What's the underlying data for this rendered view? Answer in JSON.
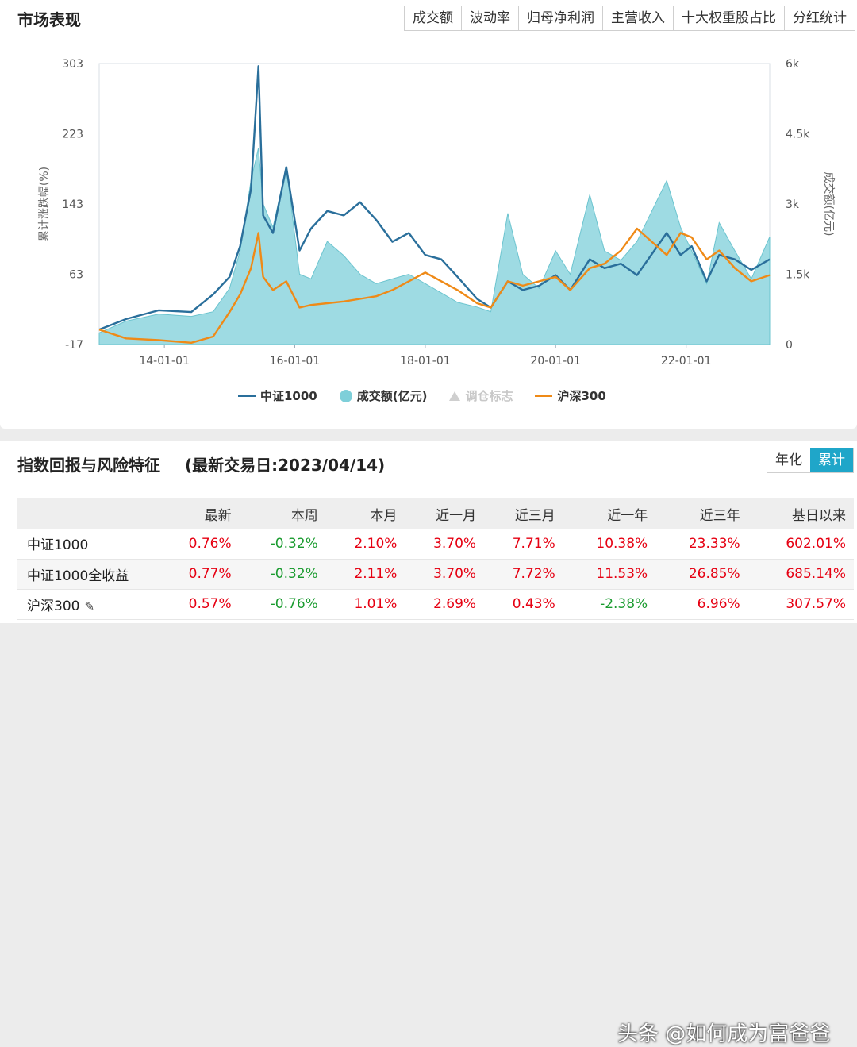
{
  "market": {
    "title": "市场表现",
    "tabs": [
      "成交额",
      "波动率",
      "归母净利润",
      "主营收入",
      "十大权重股占比",
      "分红统计"
    ],
    "active_tab": 0,
    "legend": {
      "series_a": "中证1000",
      "volume": "成交额(亿元)",
      "marker": "调仓标志",
      "series_b": "沪深300"
    }
  },
  "chart_data": {
    "type": "line",
    "ylabel": "累计涨跌幅(%)",
    "ylabel_right": "成交额(亿元)",
    "y_ticks": [
      "303",
      "223",
      "143",
      "63",
      "-17"
    ],
    "y_right_ticks": [
      "6k",
      "4.5k",
      "3k",
      "1.5k",
      "0"
    ],
    "x_ticks": [
      "14-01-01",
      "16-01-01",
      "18-01-01",
      "20-01-01",
      "22-01-01"
    ],
    "ylim": [
      -17,
      303
    ],
    "ylim_right": [
      0,
      6000
    ],
    "x_range": [
      "2013-01-01",
      "2023-04-14"
    ],
    "series": [
      {
        "name": "中证1000",
        "color": "#2a6f9b",
        "x": [
          "2013-01-01",
          "2013-06-01",
          "2013-12-01",
          "2014-06-01",
          "2014-10-01",
          "2015-01-01",
          "2015-03-01",
          "2015-05-01",
          "2015-06-12",
          "2015-07-08",
          "2015-09-01",
          "2015-11-15",
          "2016-01-28",
          "2016-04-01",
          "2016-07-01",
          "2016-10-01",
          "2017-01-01",
          "2017-04-01",
          "2017-07-01",
          "2017-10-01",
          "2018-01-01",
          "2018-04-01",
          "2018-07-01",
          "2018-10-18",
          "2019-01-03",
          "2019-04-08",
          "2019-07-01",
          "2019-10-01",
          "2020-01-01",
          "2020-03-23",
          "2020-07-10",
          "2020-10-01",
          "2021-01-01",
          "2021-04-01",
          "2021-09-14",
          "2021-12-01",
          "2022-02-01",
          "2022-04-26",
          "2022-07-05",
          "2022-10-01",
          "2023-01-01",
          "2023-04-14"
        ],
        "values": [
          0,
          12,
          22,
          20,
          40,
          60,
          95,
          160,
          300,
          130,
          110,
          185,
          90,
          115,
          135,
          130,
          145,
          125,
          100,
          110,
          85,
          80,
          60,
          35,
          25,
          55,
          45,
          50,
          62,
          45,
          80,
          70,
          75,
          62,
          110,
          85,
          95,
          55,
          85,
          80,
          68,
          80
        ]
      },
      {
        "name": "沪深300",
        "color": "#ef8a17",
        "x": [
          "2013-01-01",
          "2013-06-01",
          "2013-12-01",
          "2014-06-01",
          "2014-10-01",
          "2015-01-01",
          "2015-03-01",
          "2015-05-01",
          "2015-06-12",
          "2015-07-08",
          "2015-09-01",
          "2015-11-15",
          "2016-01-28",
          "2016-04-01",
          "2016-07-01",
          "2016-10-01",
          "2017-01-01",
          "2017-04-01",
          "2017-07-01",
          "2017-10-01",
          "2018-01-01",
          "2018-04-01",
          "2018-07-01",
          "2018-10-18",
          "2019-01-03",
          "2019-04-08",
          "2019-07-01",
          "2019-10-01",
          "2020-01-01",
          "2020-03-23",
          "2020-07-10",
          "2020-10-01",
          "2021-01-01",
          "2021-04-01",
          "2021-09-14",
          "2021-12-01",
          "2022-02-01",
          "2022-04-26",
          "2022-07-05",
          "2022-10-01",
          "2023-01-01",
          "2023-04-14"
        ],
        "values": [
          0,
          -10,
          -12,
          -15,
          -8,
          20,
          40,
          70,
          110,
          60,
          45,
          55,
          25,
          28,
          30,
          32,
          35,
          38,
          45,
          55,
          65,
          55,
          45,
          30,
          25,
          55,
          50,
          55,
          60,
          45,
          70,
          75,
          90,
          115,
          85,
          110,
          105,
          80,
          90,
          70,
          55,
          62
        ]
      },
      {
        "name": "成交额(亿元)",
        "color": "#7ecfd9",
        "x": [
          "2013-01-01",
          "2013-06-01",
          "2013-12-01",
          "2014-06-01",
          "2014-10-01",
          "2015-01-01",
          "2015-03-01",
          "2015-05-01",
          "2015-06-12",
          "2015-07-08",
          "2015-09-01",
          "2015-11-15",
          "2016-01-28",
          "2016-04-01",
          "2016-07-01",
          "2016-10-01",
          "2017-01-01",
          "2017-04-01",
          "2017-07-01",
          "2017-10-01",
          "2018-01-01",
          "2018-04-01",
          "2018-07-01",
          "2018-10-18",
          "2019-01-03",
          "2019-04-08",
          "2019-07-01",
          "2019-10-01",
          "2020-01-01",
          "2020-03-23",
          "2020-07-10",
          "2020-10-01",
          "2021-01-01",
          "2021-04-01",
          "2021-09-14",
          "2021-12-01",
          "2022-02-01",
          "2022-04-26",
          "2022-07-05",
          "2022-10-01",
          "2023-01-01",
          "2023-04-14"
        ],
        "values": [
          250,
          500,
          650,
          600,
          700,
          1200,
          2000,
          3500,
          4200,
          3000,
          2500,
          3800,
          1500,
          1400,
          2200,
          1900,
          1500,
          1300,
          1400,
          1500,
          1300,
          1100,
          900,
          800,
          700,
          2800,
          1500,
          1200,
          2000,
          1500,
          3200,
          2000,
          1800,
          2200,
          3500,
          2500,
          2000,
          1300,
          2600,
          2000,
          1400,
          2300
        ]
      }
    ]
  },
  "risk": {
    "title": "指数回报与风险特征",
    "subtitle": "(最新交易日:2023/04/14)",
    "toggle": [
      "年化",
      "累计"
    ],
    "active_toggle": 1,
    "columns": [
      "",
      "最新",
      "本周",
      "本月",
      "近一月",
      "近三月",
      "近一年",
      "近三年",
      "基日以来"
    ],
    "rows": [
      {
        "name": "中证1000",
        "values": [
          "0.76%",
          "-0.32%",
          "2.10%",
          "3.70%",
          "7.71%",
          "10.38%",
          "23.33%",
          "602.01%"
        ]
      },
      {
        "name": "中证1000全收益",
        "values": [
          "0.77%",
          "-0.32%",
          "2.11%",
          "3.70%",
          "7.72%",
          "11.53%",
          "26.85%",
          "685.14%"
        ]
      },
      {
        "name": "沪深300",
        "values": [
          "0.57%",
          "-0.76%",
          "1.01%",
          "2.69%",
          "0.43%",
          "-2.38%",
          "6.96%",
          "307.57%"
        ]
      }
    ]
  },
  "watermark": "头条 @如何成为富爸爸",
  "colors": {
    "accent": "#1fa6c9",
    "positive": "#e60012",
    "negative": "#1a9b2f"
  }
}
